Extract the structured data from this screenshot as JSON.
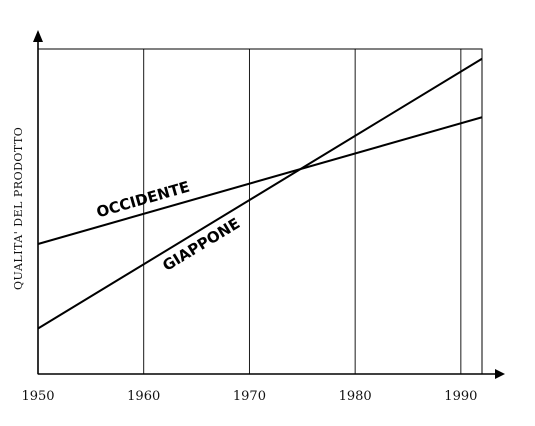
{
  "chart_data": {
    "type": "line",
    "title": "",
    "xlabel": "",
    "ylabel": "QUALITA' DEL PRODOTTO",
    "x_ticks": [
      1950,
      1960,
      1970,
      1980,
      1990
    ],
    "xlim": [
      1950,
      1992
    ],
    "ylim": [
      0,
      100
    ],
    "grid": "vertical",
    "series": [
      {
        "name": "OCCIDENTE",
        "x": [
          1950,
          1992
        ],
        "y": [
          40,
          79
        ]
      },
      {
        "name": "GIAPPONE",
        "x": [
          1950,
          1992
        ],
        "y": [
          14,
          97
        ]
      }
    ]
  }
}
